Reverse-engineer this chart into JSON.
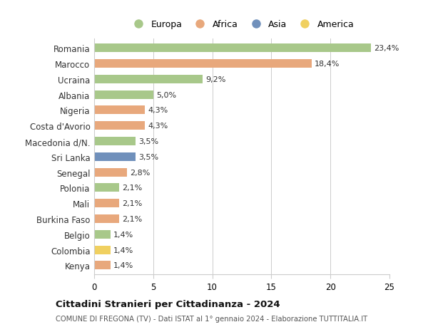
{
  "countries": [
    "Romania",
    "Marocco",
    "Ucraina",
    "Albania",
    "Nigeria",
    "Costa d'Avorio",
    "Macedonia d/N.",
    "Sri Lanka",
    "Senegal",
    "Polonia",
    "Mali",
    "Burkina Faso",
    "Belgio",
    "Colombia",
    "Kenya"
  ],
  "values": [
    23.4,
    18.4,
    9.2,
    5.0,
    4.3,
    4.3,
    3.5,
    3.5,
    2.8,
    2.1,
    2.1,
    2.1,
    1.4,
    1.4,
    1.4
  ],
  "labels": [
    "23,4%",
    "18,4%",
    "9,2%",
    "5,0%",
    "4,3%",
    "4,3%",
    "3,5%",
    "3,5%",
    "2,8%",
    "2,1%",
    "2,1%",
    "2,1%",
    "1,4%",
    "1,4%",
    "1,4%"
  ],
  "continents": [
    "Europa",
    "Africa",
    "Europa",
    "Europa",
    "Africa",
    "Africa",
    "Europa",
    "Asia",
    "Africa",
    "Europa",
    "Africa",
    "Africa",
    "Europa",
    "America",
    "Africa"
  ],
  "continent_colors": {
    "Europa": "#a8c88a",
    "Africa": "#e8a87c",
    "Asia": "#7090bb",
    "America": "#f0d060"
  },
  "legend_order": [
    "Europa",
    "Africa",
    "Asia",
    "America"
  ],
  "title": "Cittadini Stranieri per Cittadinanza - 2024",
  "subtitle": "COMUNE DI FREGONA (TV) - Dati ISTAT al 1° gennaio 2024 - Elaborazione TUTTITALIA.IT",
  "xlim": [
    0,
    25
  ],
  "xticks": [
    0,
    5,
    10,
    15,
    20,
    25
  ],
  "background_color": "#ffffff",
  "grid_color": "#cccccc"
}
